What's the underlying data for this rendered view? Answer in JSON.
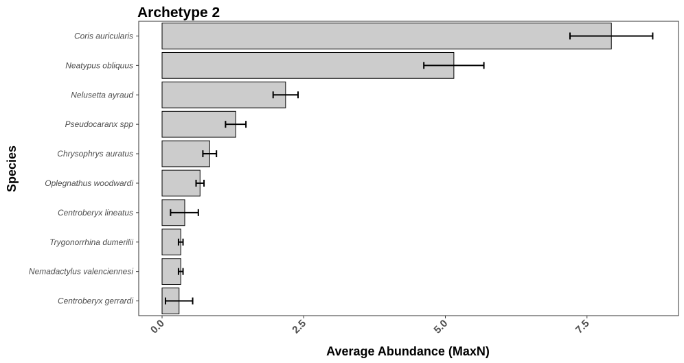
{
  "chart_data": {
    "type": "bar",
    "orientation": "horizontal",
    "title": "Archetype 2",
    "xlabel": "Average Abundance (MaxN)",
    "ylabel": "Species",
    "xlim": [
      -0.4,
      9.1
    ],
    "xticks": [
      0,
      2.5,
      5,
      7.5
    ],
    "xtick_labels": [
      "0.0",
      "2.5",
      "5.0",
      "7.5"
    ],
    "grid": false,
    "categories": [
      "Coris auricularis",
      "Neatypus obliquus",
      "Nelusetta ayraud",
      "Pseudocaranx spp",
      "Chrysophrys auratus",
      "Oplegnathus woodwardi",
      "Centroberyx lineatus",
      "Trygonorrhina dumerilii",
      "Nemadactylus valenciennesi",
      "Centroberyx gerrardi"
    ],
    "values": [
      7.93,
      5.15,
      2.18,
      1.3,
      0.84,
      0.67,
      0.4,
      0.33,
      0.33,
      0.3
    ],
    "error_low": [
      7.2,
      4.62,
      1.96,
      1.12,
      0.72,
      0.6,
      0.15,
      0.29,
      0.29,
      0.06
    ],
    "error_high": [
      8.66,
      5.68,
      2.4,
      1.48,
      0.96,
      0.74,
      0.64,
      0.37,
      0.37,
      0.54
    ],
    "bar_color": "#cccccc",
    "bar_edge_color": "#000000"
  }
}
